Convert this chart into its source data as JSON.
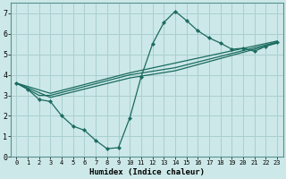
{
  "title": "",
  "xlabel": "Humidex (Indice chaleur)",
  "ylabel": "",
  "bg_color": "#cce8e8",
  "line_color": "#1a6b60",
  "grid_color": "#aacfcf",
  "xlim": [
    -0.5,
    23.5
  ],
  "ylim": [
    0,
    7.5
  ],
  "xticks": [
    0,
    1,
    2,
    3,
    4,
    5,
    6,
    7,
    8,
    9,
    10,
    11,
    12,
    13,
    14,
    15,
    16,
    17,
    18,
    19,
    20,
    21,
    22,
    23
  ],
  "yticks": [
    0,
    1,
    2,
    3,
    4,
    5,
    6,
    7
  ],
  "lines": [
    {
      "x": [
        0,
        1,
        2,
        3,
        4,
        5,
        6,
        7,
        8,
        9,
        10,
        11,
        12,
        13,
        14,
        15,
        16,
        17,
        18,
        19,
        20,
        21,
        22,
        23
      ],
      "y": [
        3.6,
        3.3,
        2.8,
        2.7,
        2.0,
        1.5,
        1.3,
        0.8,
        0.4,
        0.45,
        1.9,
        3.9,
        5.5,
        6.55,
        7.1,
        6.65,
        6.15,
        5.8,
        5.55,
        5.25,
        5.3,
        5.15,
        5.4,
        5.6
      ],
      "has_markers": true
    },
    {
      "x": [
        0,
        2,
        3,
        10,
        14,
        23
      ],
      "y": [
        3.6,
        3.0,
        3.0,
        4.0,
        4.35,
        5.6
      ],
      "has_markers": false
    },
    {
      "x": [
        0,
        3,
        10,
        14,
        23
      ],
      "y": [
        3.6,
        2.9,
        3.85,
        4.2,
        5.55
      ],
      "has_markers": false
    },
    {
      "x": [
        0,
        3,
        10,
        23
      ],
      "y": [
        3.6,
        3.1,
        4.1,
        5.65
      ],
      "has_markers": false
    }
  ],
  "xlabel_fontsize": 6.5,
  "tick_fontsize": 5.0,
  "ytick_fontsize": 6.0
}
